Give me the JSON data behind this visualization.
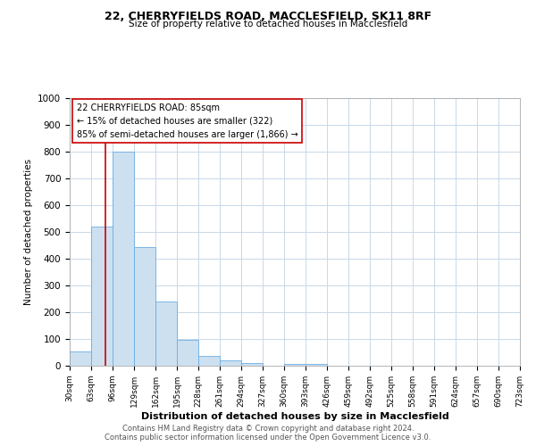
{
  "title1": "22, CHERRYFIELDS ROAD, MACCLESFIELD, SK11 8RF",
  "title2": "Size of property relative to detached houses in Macclesfield",
  "xlabel": "Distribution of detached houses by size in Macclesfield",
  "ylabel": "Number of detached properties",
  "bar_heights": [
    52,
    520,
    800,
    445,
    240,
    97,
    37,
    20,
    10,
    0,
    8,
    8,
    0,
    0,
    0,
    0,
    0,
    0,
    0,
    0
  ],
  "bar_color": "#cce0f0",
  "bar_edge_color": "#6aade4",
  "property_line_x": 85,
  "property_line_color": "#cc0000",
  "annotation_text": "22 CHERRYFIELDS ROAD: 85sqm\n← 15% of detached houses are smaller (322)\n85% of semi-detached houses are larger (1,866) →",
  "annotation_box_color": "#ffffff",
  "annotation_box_edge": "#cc0000",
  "ylim": [
    0,
    1000
  ],
  "bin_edges": [
    30,
    63,
    96,
    129,
    162,
    195,
    228,
    261,
    294,
    327,
    360,
    393,
    426,
    459,
    492,
    525,
    558,
    591,
    624,
    657,
    690
  ],
  "footer1": "Contains HM Land Registry data © Crown copyright and database right 2024.",
  "footer2": "Contains public sector information licensed under the Open Government Licence v3.0.",
  "background_color": "#ffffff",
  "grid_color": "#c8d8e8"
}
